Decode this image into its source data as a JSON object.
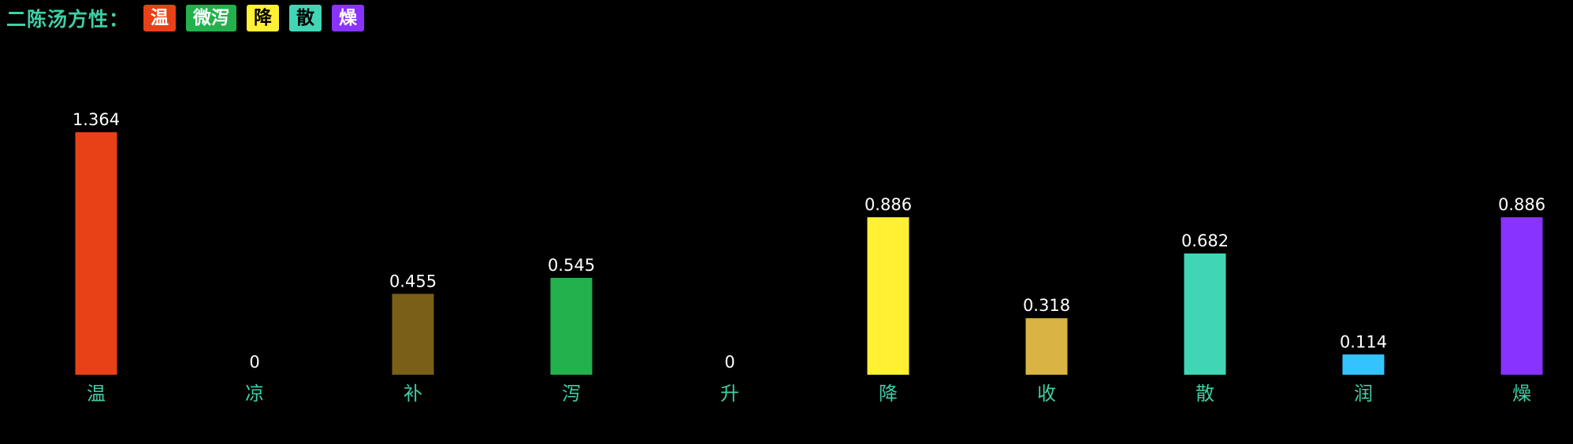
{
  "header": {
    "title": "二陈汤方性：",
    "badges": [
      {
        "label": "温",
        "bg": "#e84118",
        "fg": "#ffffff"
      },
      {
        "label": "微泻",
        "bg": "#22b14c",
        "fg": "#ffffff"
      },
      {
        "label": "降",
        "bg": "#fff033",
        "fg": "#000000"
      },
      {
        "label": "散",
        "bg": "#40d6b5",
        "fg": "#000000"
      },
      {
        "label": "燥",
        "bg": "#8833ff",
        "fg": "#ffffff"
      }
    ]
  },
  "chart_data": {
    "type": "bar",
    "categories": [
      "温",
      "凉",
      "补",
      "泻",
      "升",
      "降",
      "收",
      "散",
      "润",
      "燥"
    ],
    "values": [
      1.364,
      0,
      0.455,
      0.545,
      0,
      0.886,
      0.318,
      0.682,
      0.114,
      0.886
    ],
    "value_labels": [
      "1.364",
      "0",
      "0.455",
      "0.545",
      "0",
      "0.886",
      "0.318",
      "0.682",
      "0.114",
      "0.886"
    ],
    "colors": [
      "#e84118",
      "#888888",
      "#7a5f18",
      "#22b14c",
      "#888888",
      "#fff033",
      "#d9b444",
      "#40d6b5",
      "#33c4ff",
      "#8833ff"
    ],
    "label_color": "#3ecfa6",
    "value_label_color": "#ffffff",
    "background": "#000000",
    "grid": false,
    "legend": "none"
  }
}
